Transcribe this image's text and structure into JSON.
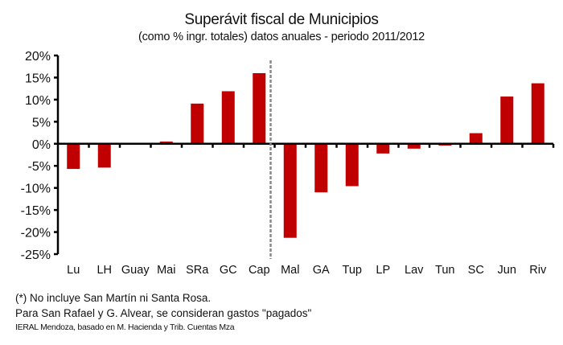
{
  "chart_data": {
    "type": "bar",
    "title": "Superávit fiscal de Municipios",
    "subtitle": "(como % ingr. totales) datos anuales - periodo 2011/2012",
    "xlabel": "",
    "ylabel": "",
    "ylim": [
      -25,
      20
    ],
    "yticks": [
      20,
      15,
      10,
      5,
      0,
      -5,
      -10,
      -15,
      -20,
      -25
    ],
    "ytick_labels": [
      "20%",
      "15%",
      "10%",
      "5%",
      "0%",
      "-5%",
      "-10%",
      "-15%",
      "-20%",
      "-25%"
    ],
    "grid": false,
    "legend": null,
    "bar_color": "#c00000",
    "divider_after_index": 6,
    "categories": [
      "Lu",
      "LH",
      "Guay",
      "Mai",
      "SRa",
      "GC",
      "Cap",
      "Mal",
      "GA",
      "Tup",
      "LP",
      "Lav",
      "Tun",
      "SC",
      "Jun",
      "Riv"
    ],
    "values": [
      -5.7,
      -5.4,
      0.2,
      0.5,
      9.1,
      11.9,
      16.0,
      -21.3,
      -11.0,
      -9.6,
      -2.2,
      -1.1,
      -0.4,
      2.4,
      10.7,
      13.7
    ]
  },
  "notes": {
    "line1": "(*) No incluye San Martín ni Santa Rosa.",
    "line2": "Para San Rafael y G. Alvear, se consideran gastos \"pagados\"",
    "source": "IERAL Mendoza, basado en M. Hacienda y Trib. Cuentas Mza"
  }
}
